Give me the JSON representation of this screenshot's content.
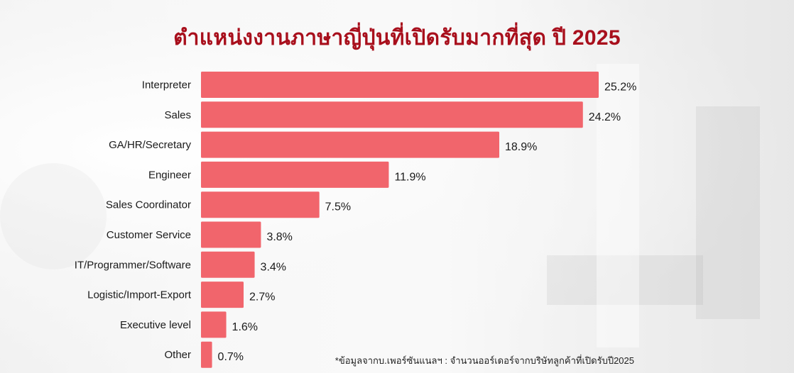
{
  "title": "ตำแหน่งงานภาษาญี่ปุ่นที่เปิดรับมากที่สุด ปี 2025",
  "footnote": "*ข้อมูลจากบ.เพอร์ซันแนลฯ : จำนวนออร์เดอร์จากบริษัทลูกค้าที่เปิดรับปี2025",
  "colors": {
    "bar": "#f1656c",
    "title": "#a80f1c",
    "text": "#1a1a1a"
  },
  "chart_data": {
    "type": "bar",
    "orientation": "horizontal",
    "categories": [
      "Interpreter",
      "Sales",
      "GA/HR/Secretary",
      "Engineer",
      "Sales Coordinator",
      "Customer Service",
      "IT/Programmer/Software",
      "Logistic/Import-Export",
      "Executive level",
      "Other"
    ],
    "values": [
      25.2,
      24.2,
      18.9,
      11.9,
      7.5,
      3.8,
      3.4,
      2.7,
      1.6,
      0.7
    ],
    "value_labels": [
      "25.2%",
      "24.2%",
      "18.9%",
      "11.9%",
      "7.5%",
      "3.8%",
      "3.4%",
      "2.7%",
      "1.6%",
      "0.7%"
    ],
    "unit": "%",
    "xlim": [
      0,
      25.2
    ],
    "grid": false,
    "legend": "none"
  }
}
